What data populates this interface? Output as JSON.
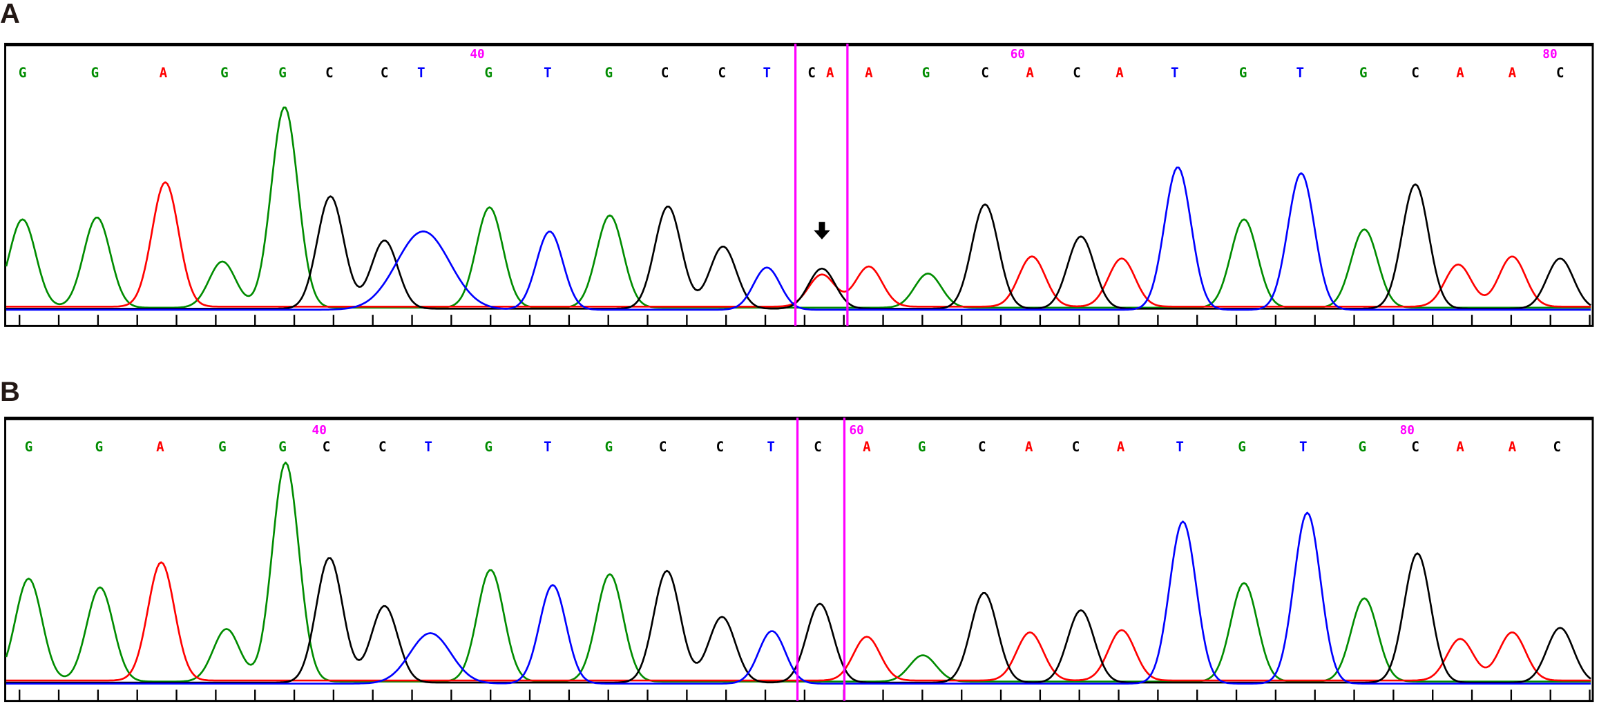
{
  "colors": {
    "A": "#ff0000",
    "C": "#000000",
    "G": "#008c00",
    "T": "#0000ff",
    "marker": "#ff00ff"
  },
  "panels": [
    {
      "label": "A",
      "base_calls": [
        "G",
        "G",
        "A",
        "G",
        "G",
        "C",
        "C",
        "T",
        "G",
        "T",
        "G",
        "C",
        "C",
        "T",
        "C",
        "A",
        "A",
        "G",
        "C",
        "A",
        "C",
        "A",
        "T",
        "G",
        "T",
        "G",
        "C",
        "A",
        "A",
        "C"
      ],
      "position_markers": [
        "40",
        "60",
        "80"
      ],
      "peak_intensity_pct": [
        44,
        45,
        62,
        23,
        100,
        56,
        34,
        39,
        50,
        39,
        46,
        51,
        31,
        21,
        20,
        16,
        20,
        17,
        52,
        25,
        36,
        24,
        71,
        44,
        68,
        39,
        62,
        21,
        25,
        25
      ],
      "highlighted_region": "C/A overlapping peaks",
      "arrow": "down-arrow-icon"
    },
    {
      "label": "B",
      "base_calls": [
        "G",
        "G",
        "A",
        "G",
        "G",
        "C",
        "C",
        "T",
        "G",
        "T",
        "G",
        "C",
        "C",
        "T",
        "C",
        "A",
        "G",
        "C",
        "A",
        "C",
        "A",
        "T",
        "G",
        "T",
        "G",
        "C",
        "A",
        "A",
        "C"
      ],
      "position_markers": [
        "40",
        "60",
        "80"
      ],
      "peak_intensity_pct": [
        47,
        43,
        54,
        24,
        100,
        57,
        35,
        23,
        51,
        45,
        49,
        51,
        30,
        24,
        36,
        20,
        12,
        41,
        22,
        33,
        23,
        74,
        45,
        78,
        38,
        59,
        19,
        22,
        25
      ]
    }
  ],
  "chart_data": [
    {
      "type": "line",
      "title": "A",
      "series": [
        {
          "name": "A",
          "color": "#ff0000"
        },
        {
          "name": "C",
          "color": "#000000"
        },
        {
          "name": "G",
          "color": "#008c00"
        },
        {
          "name": "T",
          "color": "#0000ff"
        }
      ],
      "categories": [
        "G",
        "G",
        "A",
        "G",
        "G",
        "C",
        "C",
        "T",
        "G",
        "T",
        "G",
        "C",
        "C",
        "T",
        "C",
        "A",
        "A",
        "G",
        "C",
        "A",
        "C",
        "A",
        "T",
        "G",
        "T",
        "G",
        "C",
        "A",
        "A",
        "C"
      ],
      "values": [
        44,
        45,
        62,
        23,
        100,
        56,
        34,
        39,
        50,
        39,
        46,
        51,
        31,
        21,
        20,
        16,
        20,
        17,
        52,
        25,
        36,
        24,
        71,
        44,
        68,
        39,
        62,
        21,
        25,
        25
      ],
      "tick_labels": [
        "40",
        "60",
        "80"
      ],
      "grid": false
    },
    {
      "type": "line",
      "title": "B",
      "series": [
        {
          "name": "A",
          "color": "#ff0000"
        },
        {
          "name": "C",
          "color": "#000000"
        },
        {
          "name": "G",
          "color": "#008c00"
        },
        {
          "name": "T",
          "color": "#0000ff"
        }
      ],
      "categories": [
        "G",
        "G",
        "A",
        "G",
        "G",
        "C",
        "C",
        "T",
        "G",
        "T",
        "G",
        "C",
        "C",
        "T",
        "C",
        "A",
        "G",
        "C",
        "A",
        "C",
        "A",
        "T",
        "G",
        "T",
        "G",
        "C",
        "A",
        "A",
        "C"
      ],
      "values": [
        47,
        43,
        54,
        24,
        100,
        57,
        35,
        23,
        51,
        45,
        49,
        51,
        30,
        24,
        36,
        20,
        12,
        41,
        22,
        33,
        23,
        74,
        45,
        78,
        38,
        59,
        19,
        22,
        25
      ],
      "tick_labels": [
        "40",
        "60",
        "80"
      ],
      "grid": false
    }
  ]
}
